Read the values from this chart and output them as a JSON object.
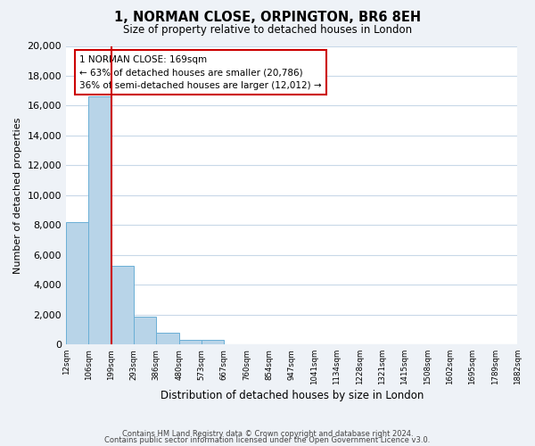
{
  "title": "1, NORMAN CLOSE, ORPINGTON, BR6 8EH",
  "subtitle": "Size of property relative to detached houses in London",
  "xlabel": "Distribution of detached houses by size in London",
  "ylabel": "Number of detached properties",
  "bar_values": [
    8200,
    16600,
    5300,
    1850,
    800,
    300,
    300,
    0,
    0,
    0,
    0,
    0,
    0,
    0,
    0,
    0,
    0,
    0,
    0,
    0
  ],
  "bar_labels": [
    "12sqm",
    "106sqm",
    "199sqm",
    "293sqm",
    "386sqm",
    "480sqm",
    "573sqm",
    "667sqm",
    "760sqm",
    "854sqm",
    "947sqm",
    "1041sqm",
    "1134sqm",
    "1228sqm",
    "1321sqm",
    "1415sqm",
    "1508sqm",
    "1602sqm",
    "1695sqm",
    "1789sqm",
    "1882sqm"
  ],
  "bar_color": "#b8d4e8",
  "bar_edge_color": "#6aafd6",
  "vline_x": 2.0,
  "vline_color": "#cc0000",
  "annotation_line1": "1 NORMAN CLOSE: 169sqm",
  "annotation_line2": "← 63% of detached houses are smaller (20,786)",
  "annotation_line3": "36% of semi-detached houses are larger (12,012) →",
  "ylim": [
    0,
    20000
  ],
  "yticks": [
    0,
    2000,
    4000,
    6000,
    8000,
    10000,
    12000,
    14000,
    16000,
    18000,
    20000
  ],
  "footer_line1": "Contains HM Land Registry data © Crown copyright and database right 2024.",
  "footer_line2": "Contains public sector information licensed under the Open Government Licence v3.0.",
  "background_color": "#eef2f7",
  "plot_bg_color": "#ffffff",
  "grid_color": "#c8d8e8"
}
